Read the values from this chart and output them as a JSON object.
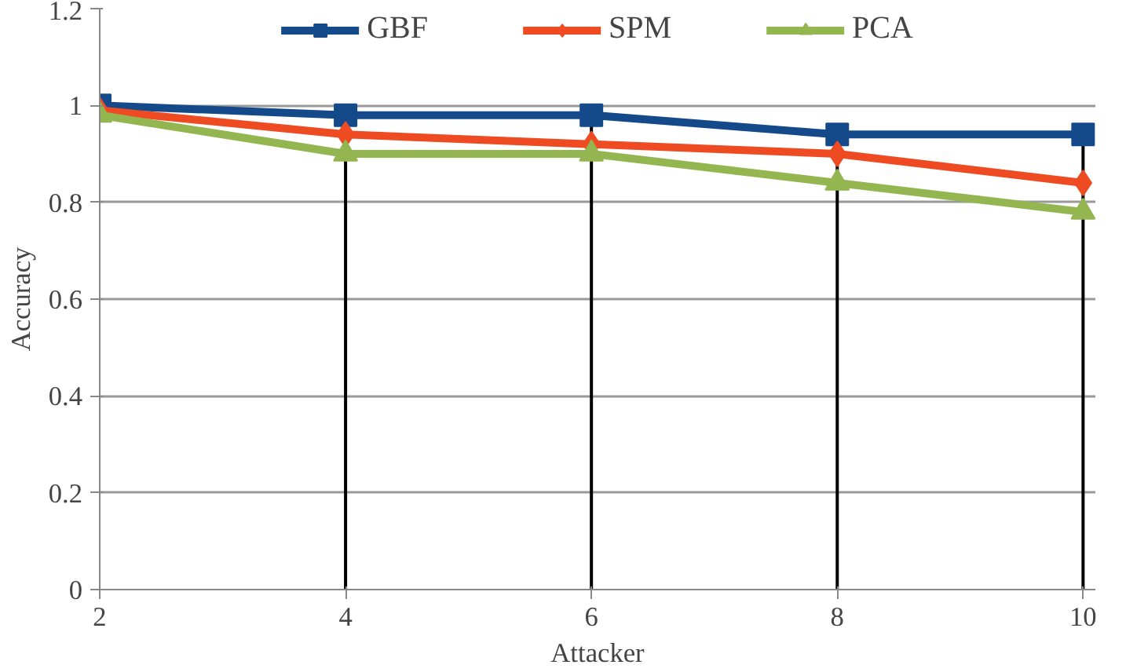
{
  "chart_data": {
    "type": "line",
    "xlabel": "Attacker",
    "ylabel": "Accuracy",
    "x": [
      2,
      4,
      6,
      8,
      10
    ],
    "series": [
      {
        "name": "GBF",
        "color": "#154a8a",
        "values": [
          1.0,
          0.98,
          0.98,
          0.94,
          0.94
        ],
        "marker": "square"
      },
      {
        "name": "SPM",
        "color": "#ef4b23",
        "values": [
          0.99,
          0.94,
          0.92,
          0.9,
          0.84
        ],
        "marker": "diamond"
      },
      {
        "name": "PCA",
        "color": "#93b650",
        "values": [
          0.98,
          0.9,
          0.9,
          0.84,
          0.78
        ],
        "marker": "triangle"
      }
    ],
    "xlim": [
      2,
      10.1
    ],
    "xticks": [
      2,
      4,
      6,
      8,
      10
    ],
    "ylim": [
      0,
      1.2
    ],
    "yticks": [
      0,
      0.2,
      0.4,
      0.6,
      0.8,
      1,
      1.2
    ],
    "ref_lines": [
      {
        "axis": "x",
        "value": 4,
        "color": "#000000"
      },
      {
        "axis": "x",
        "value": 6,
        "color": "#000000"
      },
      {
        "axis": "x",
        "value": 8,
        "color": "#000000"
      },
      {
        "axis": "x",
        "value": 10,
        "color": "#000000"
      }
    ],
    "grid": "y",
    "legend": "top",
    "line_style": "solid"
  }
}
